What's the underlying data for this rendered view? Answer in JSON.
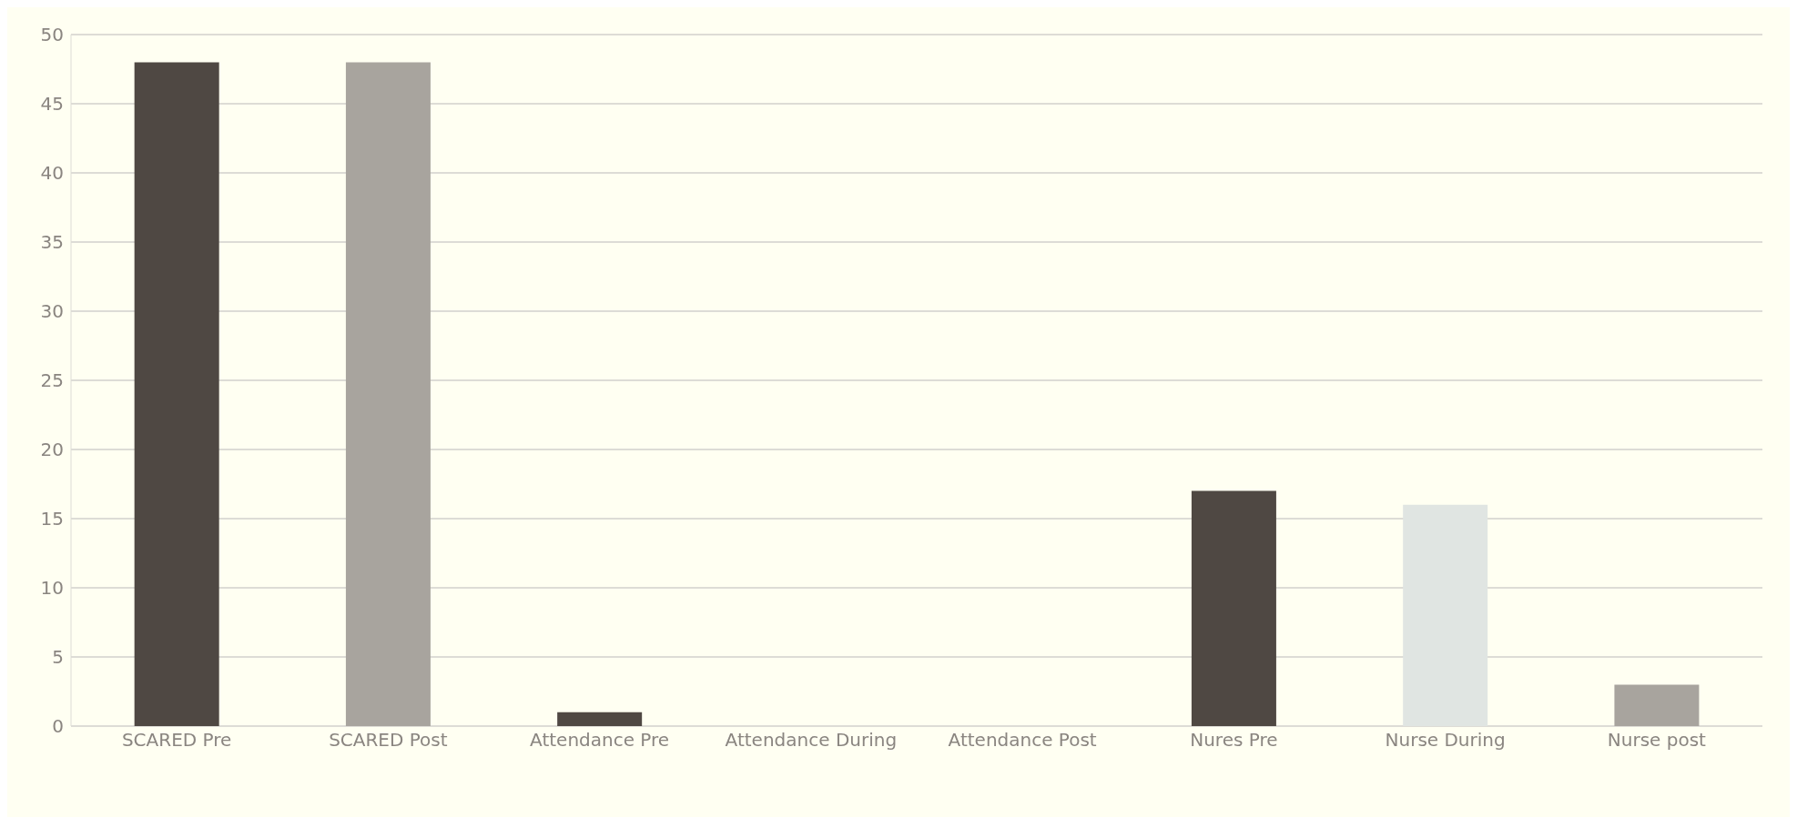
{
  "chart_data": {
    "type": "bar",
    "categories": [
      "SCARED Pre",
      "SCARED Post",
      "Attendance Pre",
      "Attendance During",
      "Attendance Post",
      "Nures Pre",
      "Nurse During",
      "Nurse post"
    ],
    "values": [
      48,
      48,
      1,
      0,
      0,
      17,
      16,
      3
    ],
    "colors": [
      "#4f4843",
      "#a8a49e",
      "#4f4843",
      "#aaaeaa",
      "#7f7b76",
      "#4f4843",
      "#e0e5e2",
      "#a8a49e"
    ],
    "ylim": [
      0,
      50
    ],
    "yticks": [
      0,
      5,
      10,
      15,
      20,
      25,
      30,
      35,
      40,
      45,
      50
    ],
    "grid": "y"
  }
}
